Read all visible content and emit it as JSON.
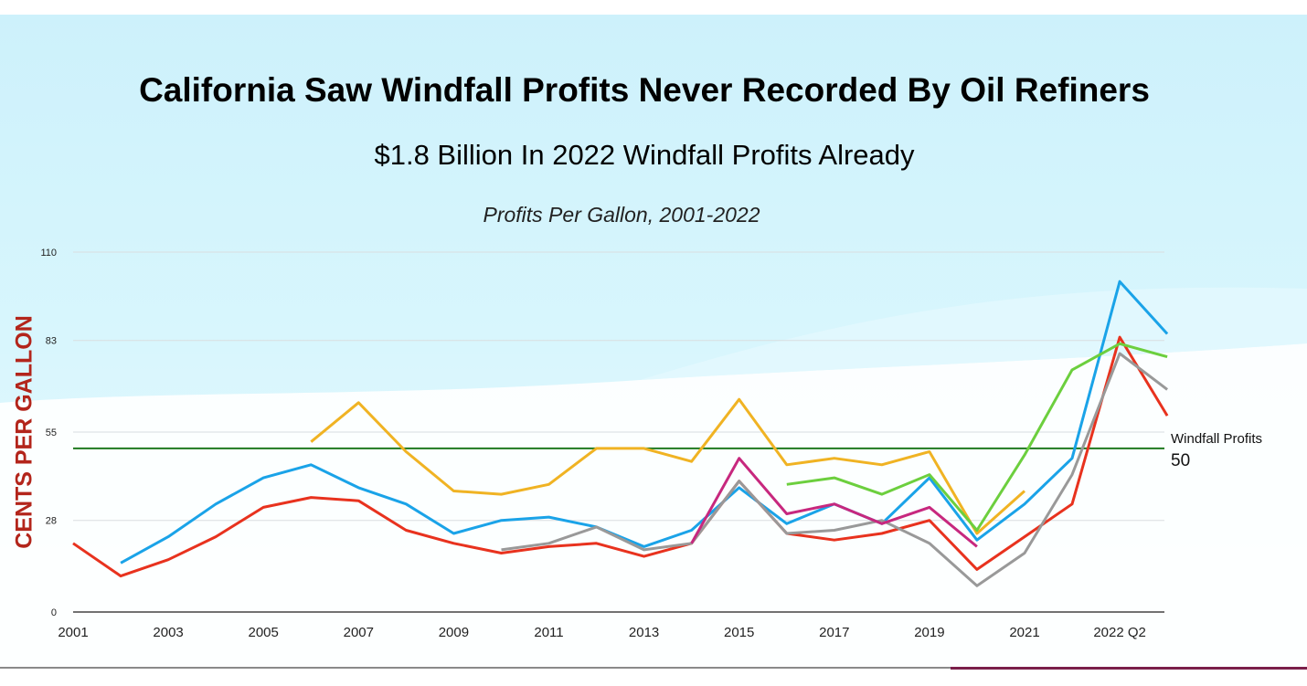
{
  "title": "California Saw Windfall Profits Never Recorded By Oil Refiners",
  "subtitle": "$1.8 Billion In 2022 Windfall Profits Already",
  "chart_subtitle": "Profits Per Gallon, 2001-2022",
  "annotation": {
    "label": "Windfall Profits",
    "value": "50"
  },
  "chart_data": {
    "type": "line",
    "title": "California Saw Windfall Profits Never Recorded By Oil Refiners",
    "subtitle": "Profits Per Gallon, 2001-2022",
    "xlabel": "",
    "ylabel": "CENTS PER GALLON",
    "ylim": [
      0,
      110
    ],
    "yticks": [
      0,
      28,
      55,
      83,
      110
    ],
    "grid": true,
    "legend": "none",
    "categories": [
      "2001",
      "2002",
      "2003",
      "2004",
      "2005",
      "2006",
      "2007",
      "2008",
      "2009",
      "2010",
      "2011",
      "2012",
      "2013",
      "2014",
      "2015",
      "2016",
      "2017",
      "2018",
      "2019",
      "2020",
      "2021",
      "",
      "2022 Q2",
      ""
    ],
    "xtick_labels": [
      "2001",
      "2003",
      "2005",
      "2007",
      "2009",
      "2011",
      "2013",
      "2015",
      "2017",
      "2019",
      "2021",
      "2022 Q2"
    ],
    "reference_line": {
      "value": 50,
      "label": "Windfall Profits",
      "color": "#1f7a1f"
    },
    "series": [
      {
        "color": "#f0b323",
        "values": [
          null,
          null,
          null,
          null,
          null,
          52,
          64,
          49,
          37,
          36,
          39,
          50,
          50,
          46,
          65,
          45,
          47,
          45,
          49,
          24,
          37,
          null,
          null,
          null
        ]
      },
      {
        "color": "#1aa3e8",
        "values": [
          null,
          15,
          23,
          33,
          41,
          45,
          38,
          33,
          24,
          28,
          29,
          26,
          20,
          25,
          38,
          27,
          33,
          27,
          41,
          22,
          33,
          47,
          101,
          85
        ]
      },
      {
        "color": "#e8321e",
        "values": [
          21,
          11,
          16,
          23,
          32,
          35,
          34,
          25,
          21,
          18,
          20,
          21,
          17,
          21,
          40,
          24,
          22,
          24,
          28,
          13,
          23,
          33,
          84,
          60
        ]
      },
      {
        "color": "#999999",
        "values": [
          null,
          null,
          null,
          null,
          null,
          null,
          null,
          null,
          null,
          19,
          21,
          26,
          19,
          21,
          40,
          24,
          25,
          28,
          21,
          8,
          18,
          42,
          79,
          68
        ]
      },
      {
        "color": "#c7287e",
        "values": [
          null,
          null,
          null,
          null,
          null,
          null,
          null,
          null,
          null,
          null,
          null,
          null,
          null,
          21,
          47,
          30,
          33,
          27,
          32,
          20,
          null,
          null,
          null,
          null
        ]
      },
      {
        "color": "#6ccf3e",
        "values": [
          null,
          null,
          null,
          null,
          null,
          null,
          null,
          null,
          null,
          null,
          null,
          null,
          null,
          null,
          null,
          39,
          41,
          36,
          42,
          25,
          48,
          74,
          82,
          78
        ]
      }
    ]
  }
}
